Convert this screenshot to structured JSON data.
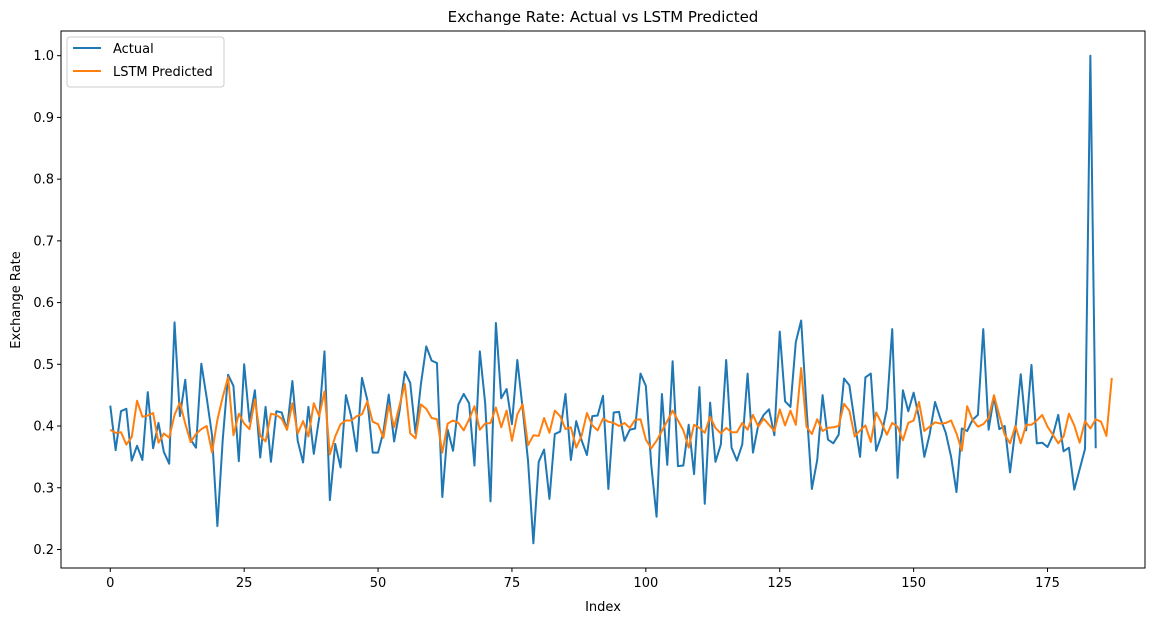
{
  "chart_data": {
    "type": "line",
    "title": "Exchange Rate: Actual vs LSTM Predicted",
    "xlabel": "Index",
    "ylabel": "Exchange Rate",
    "xlim": [
      -9.2,
      193.2
    ],
    "ylim": [
      0.17,
      1.04
    ],
    "xticks": [
      0,
      25,
      50,
      75,
      100,
      125,
      150,
      175
    ],
    "yticks": [
      0.2,
      0.3,
      0.4,
      0.5,
      0.6,
      0.7,
      0.8,
      0.9,
      1.0
    ],
    "ytick_labels": [
      "0.2",
      "0.3",
      "0.4",
      "0.5",
      "0.6",
      "0.7",
      "0.8",
      "0.9",
      "1.0"
    ],
    "grid": false,
    "legend_position": "top-left",
    "series": [
      {
        "name": "Actual",
        "color": "#1f77b4",
        "values": [
          0.433,
          0.361,
          0.424,
          0.428,
          0.344,
          0.368,
          0.345,
          0.455,
          0.364,
          0.405,
          0.358,
          0.339,
          0.568,
          0.416,
          0.475,
          0.378,
          0.365,
          0.501,
          0.446,
          0.385,
          0.238,
          0.378,
          0.483,
          0.465,
          0.343,
          0.5,
          0.407,
          0.458,
          0.349,
          0.431,
          0.342,
          0.424,
          0.422,
          0.394,
          0.473,
          0.376,
          0.341,
          0.431,
          0.355,
          0.413,
          0.521,
          0.28,
          0.371,
          0.333,
          0.45,
          0.415,
          0.359,
          0.478,
          0.442,
          0.357,
          0.357,
          0.391,
          0.451,
          0.375,
          0.424,
          0.488,
          0.47,
          0.388,
          0.468,
          0.529,
          0.506,
          0.502,
          0.285,
          0.394,
          0.36,
          0.435,
          0.452,
          0.437,
          0.336,
          0.521,
          0.437,
          0.278,
          0.567,
          0.445,
          0.46,
          0.403,
          0.507,
          0.428,
          0.344,
          0.21,
          0.342,
          0.362,
          0.282,
          0.387,
          0.391,
          0.452,
          0.345,
          0.408,
          0.377,
          0.353,
          0.416,
          0.417,
          0.449,
          0.298,
          0.422,
          0.423,
          0.376,
          0.394,
          0.396,
          0.485,
          0.465,
          0.338,
          0.253,
          0.452,
          0.337,
          0.505,
          0.335,
          0.336,
          0.402,
          0.322,
          0.463,
          0.274,
          0.438,
          0.342,
          0.37,
          0.507,
          0.365,
          0.344,
          0.37,
          0.485,
          0.357,
          0.402,
          0.418,
          0.427,
          0.385,
          0.553,
          0.44,
          0.431,
          0.536,
          0.571,
          0.43,
          0.298,
          0.345,
          0.45,
          0.378,
          0.372,
          0.386,
          0.477,
          0.466,
          0.406,
          0.35,
          0.479,
          0.485,
          0.36,
          0.385,
          0.428,
          0.557,
          0.316,
          0.458,
          0.424,
          0.454,
          0.414,
          0.35,
          0.387,
          0.439,
          0.412,
          0.389,
          0.35,
          0.293,
          0.396,
          0.392,
          0.41,
          0.418,
          0.557,
          0.394,
          0.448,
          0.395,
          0.4,
          0.325,
          0.395,
          0.484,
          0.393,
          0.499,
          0.372,
          0.373,
          0.366,
          0.385,
          0.418,
          0.359,
          0.365,
          0.297,
          0.33,
          0.363,
          1.0,
          0.364
        ]
      },
      {
        "name": "LSTM Predicted",
        "color": "#ff7f0e",
        "values": [
          0.394,
          0.389,
          0.39,
          0.37,
          0.382,
          0.441,
          0.415,
          0.417,
          0.421,
          0.373,
          0.388,
          0.381,
          0.418,
          0.438,
          0.404,
          0.374,
          0.387,
          0.395,
          0.4,
          0.357,
          0.41,
          0.447,
          0.479,
          0.385,
          0.42,
          0.404,
          0.395,
          0.443,
          0.384,
          0.375,
          0.42,
          0.418,
          0.412,
          0.394,
          0.437,
          0.388,
          0.408,
          0.383,
          0.437,
          0.416,
          0.456,
          0.354,
          0.383,
          0.403,
          0.409,
          0.409,
          0.416,
          0.419,
          0.44,
          0.407,
          0.403,
          0.381,
          0.434,
          0.398,
          0.433,
          0.468,
          0.388,
          0.38,
          0.435,
          0.428,
          0.413,
          0.411,
          0.357,
          0.404,
          0.409,
          0.405,
          0.393,
          0.411,
          0.432,
          0.394,
          0.404,
          0.405,
          0.43,
          0.398,
          0.425,
          0.376,
          0.419,
          0.435,
          0.369,
          0.385,
          0.384,
          0.413,
          0.389,
          0.425,
          0.416,
          0.395,
          0.398,
          0.365,
          0.384,
          0.421,
          0.401,
          0.393,
          0.412,
          0.407,
          0.405,
          0.4,
          0.405,
          0.397,
          0.41,
          0.411,
          0.378,
          0.364,
          0.376,
          0.392,
          0.408,
          0.425,
          0.409,
          0.393,
          0.365,
          0.402,
          0.397,
          0.389,
          0.415,
          0.397,
          0.388,
          0.397,
          0.39,
          0.39,
          0.405,
          0.394,
          0.418,
          0.399,
          0.412,
          0.402,
          0.392,
          0.427,
          0.401,
          0.425,
          0.402,
          0.494,
          0.399,
          0.387,
          0.411,
          0.392,
          0.397,
          0.398,
          0.4,
          0.436,
          0.425,
          0.383,
          0.393,
          0.401,
          0.374,
          0.422,
          0.405,
          0.386,
          0.405,
          0.399,
          0.377,
          0.405,
          0.409,
          0.439,
          0.392,
          0.399,
          0.406,
          0.404,
          0.405,
          0.409,
          0.388,
          0.36,
          0.432,
          0.41,
          0.399,
          0.403,
          0.413,
          0.45,
          0.417,
          0.386,
          0.372,
          0.4,
          0.372,
          0.402,
          0.402,
          0.409,
          0.418,
          0.399,
          0.386,
          0.372,
          0.383,
          0.42,
          0.401,
          0.373,
          0.408,
          0.396,
          0.411,
          0.407,
          0.384,
          0.478
        ]
      }
    ]
  }
}
